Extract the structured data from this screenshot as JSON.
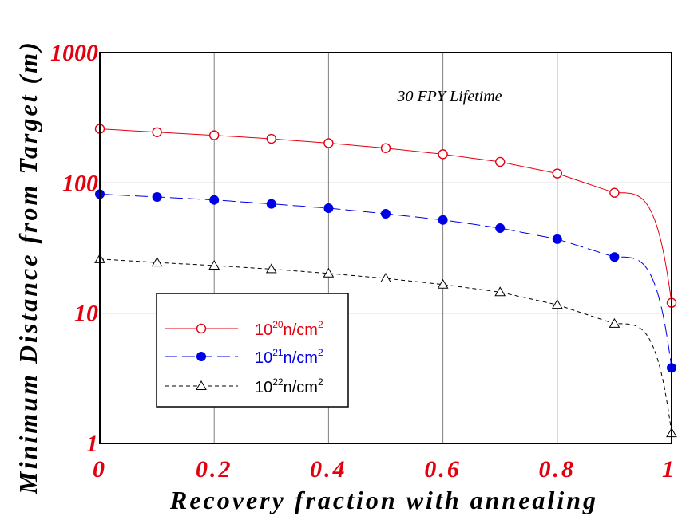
{
  "chart_data": {
    "type": "line",
    "annotation": "30 FPY Lifetime",
    "xlabel": "Recovery fraction with annealing",
    "ylabel": "Minimum Distance from Target (m)",
    "x_ticks": [
      0,
      0.2,
      0.4,
      0.6,
      0.8,
      1
    ],
    "x_tick_labels": [
      "0",
      "0.2",
      "0.4",
      "0.6",
      "0.8",
      "1"
    ],
    "y_ticks": [
      1,
      10,
      100,
      1000
    ],
    "y_tick_labels": [
      "1",
      "10",
      "100",
      "1000"
    ],
    "xlim": [
      0,
      1
    ],
    "ylim": [
      1,
      1000
    ],
    "y_scale": "log",
    "grid": true,
    "legend_position": "bottom-left",
    "series": [
      {
        "legend_base": "10",
        "legend_exp": "20",
        "legend_unit": "n/cm",
        "legend_unit_exp": "2",
        "color": "#e3000f",
        "marker": "open-circle",
        "line": "solid",
        "x": [
          0,
          0.1,
          0.2,
          0.3,
          0.4,
          0.5,
          0.6,
          0.7,
          0.8,
          0.9,
          1.0
        ],
        "y": [
          260,
          245,
          232,
          218,
          202,
          185,
          166,
          145,
          118,
          84,
          12
        ]
      },
      {
        "legend_base": "10",
        "legend_exp": "21",
        "legend_unit": "n/cm",
        "legend_unit_exp": "2",
        "color": "#0000e6",
        "marker": "filled-circle",
        "line": "long-dash",
        "x": [
          0,
          0.1,
          0.2,
          0.3,
          0.4,
          0.5,
          0.6,
          0.7,
          0.8,
          0.9,
          1.0
        ],
        "y": [
          82,
          78,
          74,
          69,
          64,
          58,
          52,
          45,
          37,
          27,
          3.8
        ]
      },
      {
        "legend_base": "10",
        "legend_exp": "22",
        "legend_unit": "n/cm",
        "legend_unit_exp": "2",
        "color": "#000000",
        "marker": "open-triangle",
        "line": "short-dash",
        "x": [
          0,
          0.1,
          0.2,
          0.3,
          0.4,
          0.5,
          0.6,
          0.7,
          0.8,
          0.9,
          1.0
        ],
        "y": [
          26,
          24.5,
          23.2,
          21.8,
          20.2,
          18.5,
          16.6,
          14.5,
          11.6,
          8.3,
          1.2
        ]
      }
    ]
  }
}
